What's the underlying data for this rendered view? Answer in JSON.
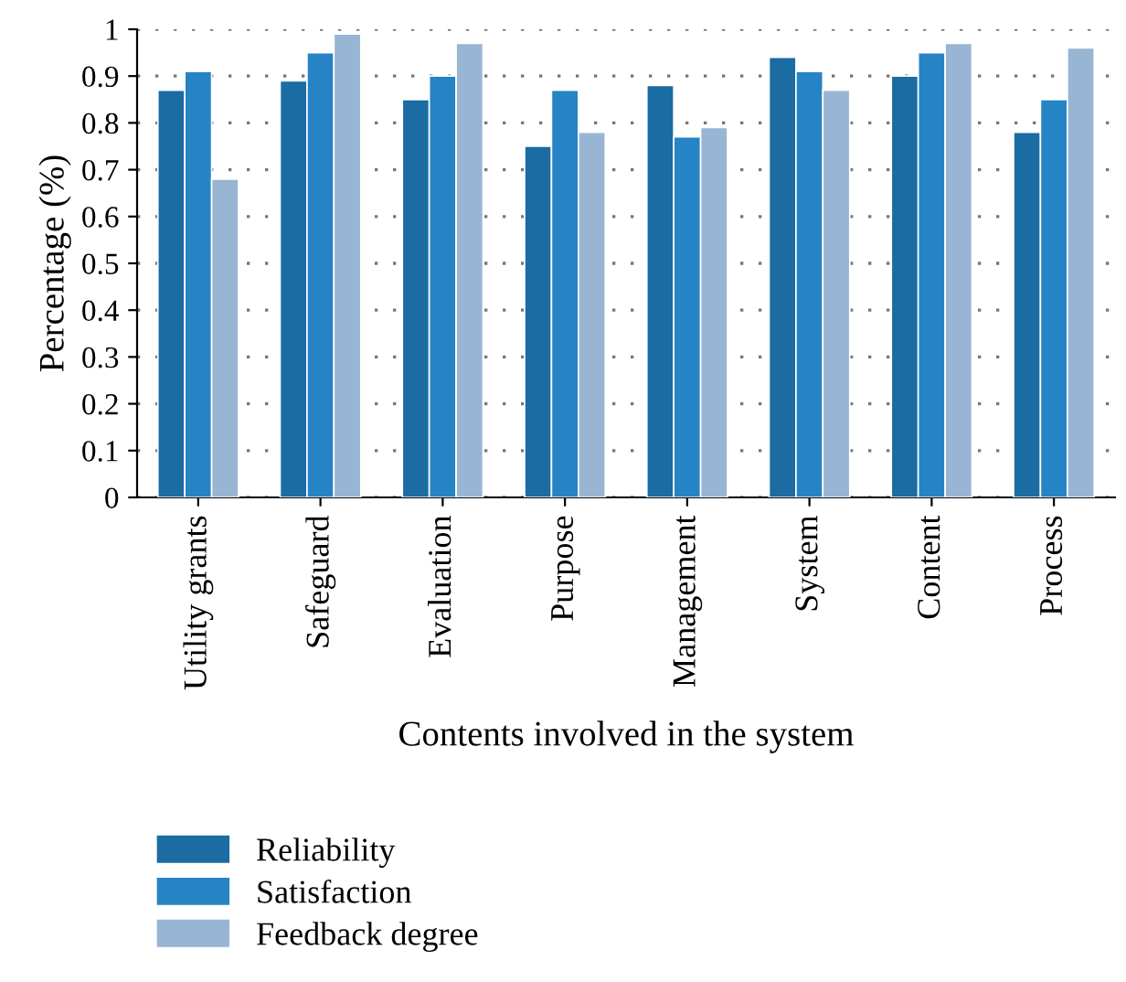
{
  "chart_data": {
    "type": "bar",
    "xlabel": "Contents involved in the system",
    "ylabel": "Percentage (%)",
    "categories": [
      "Utility grants",
      "Safeguard",
      "Evaluation",
      "Purpose",
      "Management",
      "System",
      "Content",
      "Process"
    ],
    "series": [
      {
        "name": "Reliability",
        "color": "#1a6ca3",
        "values": [
          0.87,
          0.89,
          0.85,
          0.75,
          0.88,
          0.94,
          0.9,
          0.78
        ]
      },
      {
        "name": "Satisfaction",
        "color": "#2683c4",
        "values": [
          0.91,
          0.95,
          0.9,
          0.87,
          0.77,
          0.91,
          0.95,
          0.85
        ]
      },
      {
        "name": "Feedback degree",
        "color": "#99b5d4",
        "values": [
          0.68,
          0.99,
          0.97,
          0.78,
          0.79,
          0.87,
          0.97,
          0.96
        ]
      }
    ],
    "ylim": [
      0,
      1
    ],
    "yticks": [
      0,
      0.1,
      0.2,
      0.3,
      0.4,
      0.5,
      0.6,
      0.7,
      0.8,
      0.9,
      1
    ],
    "grid": "y",
    "legend": "bottom"
  }
}
